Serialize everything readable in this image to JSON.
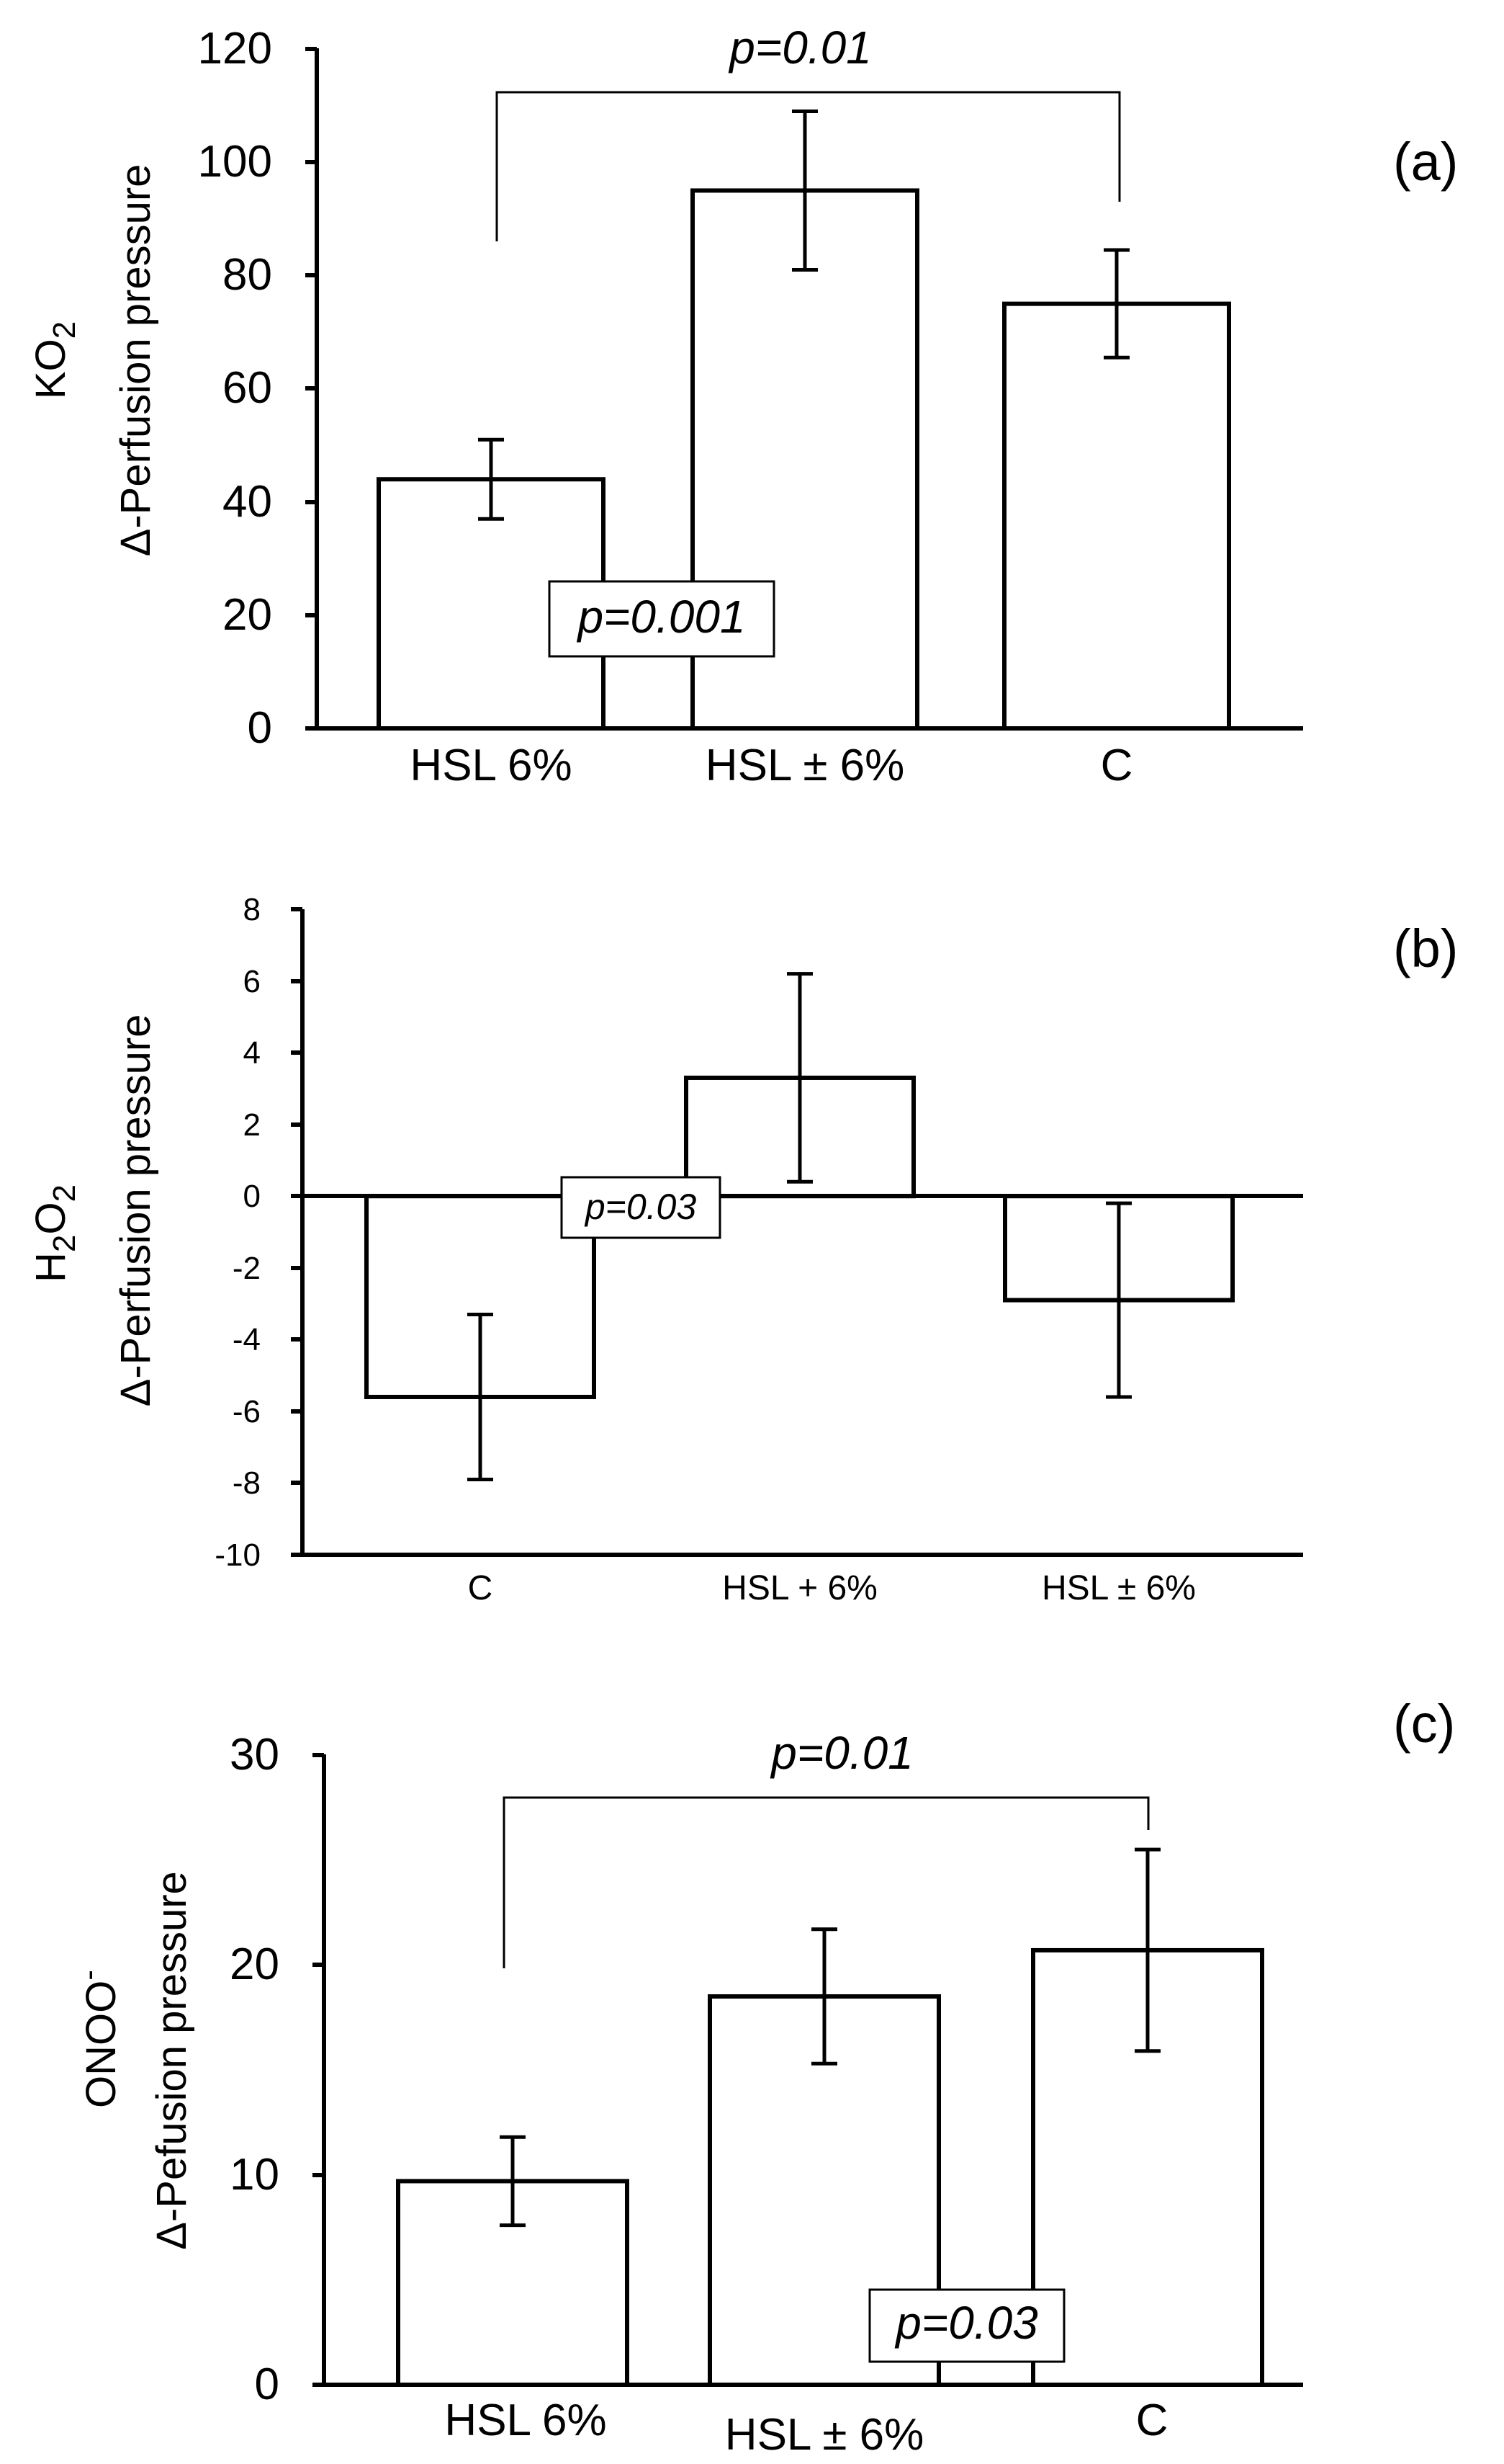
{
  "chart_data": [
    {
      "id": "a",
      "type": "bar",
      "panel_label": "(a)",
      "ylabel_main": "KO",
      "ylabel_sub": "2",
      "ylabel_second": "Δ-Perfusion pressure",
      "categories": [
        "HSL 6%",
        "HSL ± 6%",
        "C"
      ],
      "values": [
        44,
        95,
        75
      ],
      "errors": [
        7,
        14,
        9.5
      ],
      "ylim": [
        0,
        120
      ],
      "yticks": [
        "0",
        "20",
        "40",
        "60",
        "80",
        "100",
        "120"
      ],
      "annotations": {
        "bracket": "p=0.01",
        "box": "p=0.001"
      },
      "legend": "none",
      "grid": false
    },
    {
      "id": "b",
      "type": "bar",
      "panel_label": "(b)",
      "ylabel_parts": [
        "H",
        "2",
        "O",
        "2"
      ],
      "ylabel_second": "Δ-Perfusion pressure",
      "categories": [
        "C",
        "HSL + 6%",
        "HSL ± 6%"
      ],
      "values": [
        -5.6,
        3.3,
        -2.9
      ],
      "errors": [
        2.3,
        2.9,
        2.7
      ],
      "ylim": [
        -10,
        8
      ],
      "yticks": [
        "-10",
        "-8",
        "-6",
        "-4",
        "-2",
        "0",
        "2",
        "4",
        "6",
        "8"
      ],
      "annotations": {
        "box": "p=0.03"
      },
      "legend": "none",
      "grid": false
    },
    {
      "id": "c",
      "type": "bar",
      "panel_label": "(c)",
      "ylabel_main": "ONOO",
      "ylabel_sup": "-",
      "ylabel_second": "Δ-Pefusion pressure",
      "categories": [
        "HSL 6%",
        "HSL ± 6%",
        "C"
      ],
      "values": [
        9.7,
        18.5,
        20.7
      ],
      "errors": [
        2.1,
        3.2,
        4.8
      ],
      "ylim": [
        0,
        30
      ],
      "yticks": [
        "0",
        "10",
        "20",
        "30"
      ],
      "annotations": {
        "bracket": "p=0.01",
        "box": "p=0.03"
      },
      "legend": "none",
      "grid": false
    }
  ]
}
